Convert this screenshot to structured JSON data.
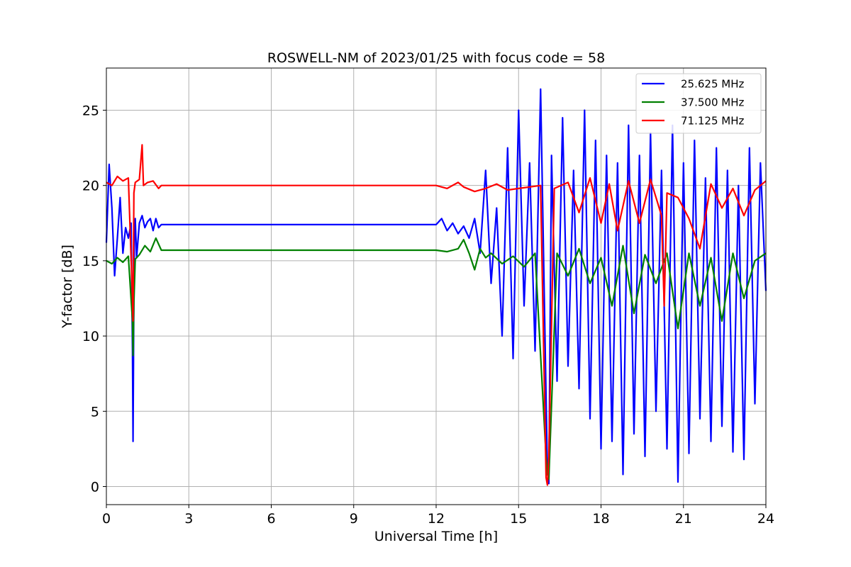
{
  "chart_data": {
    "type": "line",
    "title": "ROSWELL-NM of 2023/01/25 with focus code = 58",
    "xlabel": "Universal Time [h]",
    "ylabel": "Y-factor [dB]",
    "xlim": [
      0,
      24
    ],
    "ylim": [
      -1.2,
      27.8
    ],
    "xticks": [
      0,
      3,
      6,
      9,
      12,
      15,
      18,
      21,
      24
    ],
    "yticks": [
      0,
      5,
      10,
      15,
      20,
      25
    ],
    "grid": true,
    "legend_position": "top-right",
    "series": [
      {
        "name": "25.625 MHz",
        "color": "#0000ff",
        "x": [
          0,
          0.1,
          0.2,
          0.3,
          0.4,
          0.5,
          0.6,
          0.7,
          0.8,
          0.9,
          0.95,
          0.97,
          1.0,
          1.02,
          1.05,
          1.1,
          1.2,
          1.3,
          1.4,
          1.5,
          1.6,
          1.7,
          1.8,
          1.9,
          2.0,
          12.0,
          12.2,
          12.4,
          12.6,
          12.8,
          13.0,
          13.2,
          13.4,
          13.6,
          13.8,
          14.0,
          14.2,
          14.4,
          14.6,
          14.8,
          15.0,
          15.2,
          15.4,
          15.6,
          15.8,
          16.0,
          16.05,
          16.1,
          16.2,
          16.4,
          16.6,
          16.8,
          17.0,
          17.2,
          17.4,
          17.6,
          17.8,
          18.0,
          18.2,
          18.4,
          18.6,
          18.8,
          19.0,
          19.2,
          19.4,
          19.6,
          19.8,
          20.0,
          20.2,
          20.4,
          20.6,
          20.8,
          21.0,
          21.2,
          21.4,
          21.6,
          21.8,
          22.0,
          22.2,
          22.4,
          22.6,
          22.8,
          23.0,
          23.2,
          23.4,
          23.6,
          23.8,
          24.0
        ],
        "y": [
          16.2,
          21.4,
          18.5,
          14.0,
          16.5,
          19.2,
          15.5,
          17.2,
          16.5,
          17.5,
          9.0,
          3.0,
          13.0,
          16.5,
          17.8,
          15.2,
          17.5,
          18.0,
          17.2,
          17.6,
          17.8,
          17.0,
          17.8,
          17.2,
          17.4,
          17.4,
          17.8,
          17.0,
          17.5,
          16.8,
          17.3,
          16.5,
          17.8,
          15.5,
          21.0,
          13.5,
          18.5,
          10.0,
          22.5,
          8.5,
          25.0,
          12.0,
          21.5,
          9.0,
          26.4,
          6.0,
          1.0,
          0.2,
          22.0,
          7.0,
          24.5,
          8.0,
          21.0,
          6.5,
          25.0,
          4.5,
          23.0,
          2.5,
          22.0,
          3.0,
          21.5,
          0.8,
          24.0,
          3.5,
          22.0,
          2.0,
          23.5,
          5.0,
          21.0,
          2.5,
          24.0,
          0.3,
          21.5,
          2.2,
          23.0,
          4.5,
          20.5,
          3.0,
          22.5,
          4.0,
          21.0,
          2.3,
          20.0,
          1.8,
          22.5,
          5.5,
          21.5,
          13.0
        ]
      },
      {
        "name": "37.500 MHz",
        "color": "#008000",
        "x": [
          0,
          0.2,
          0.4,
          0.6,
          0.8,
          0.95,
          0.97,
          1.0,
          1.05,
          1.2,
          1.4,
          1.6,
          1.8,
          2.0,
          12.0,
          12.4,
          12.8,
          13.0,
          13.2,
          13.4,
          13.6,
          13.8,
          14.0,
          14.4,
          14.8,
          15.2,
          15.6,
          16.0,
          16.05,
          16.1,
          16.4,
          16.8,
          17.2,
          17.6,
          18.0,
          18.4,
          18.8,
          19.2,
          19.6,
          20.0,
          20.4,
          20.8,
          21.2,
          21.6,
          22.0,
          22.4,
          22.8,
          23.2,
          23.6,
          24.0
        ],
        "y": [
          15.0,
          14.8,
          15.2,
          14.9,
          15.3,
          11.0,
          8.7,
          12.2,
          15.1,
          15.4,
          16.0,
          15.6,
          16.5,
          15.7,
          15.7,
          15.6,
          15.8,
          16.4,
          15.5,
          14.4,
          15.8,
          15.2,
          15.5,
          14.8,
          15.3,
          14.6,
          15.5,
          2.0,
          0.8,
          0.5,
          15.5,
          14.0,
          15.8,
          13.5,
          15.2,
          12.0,
          16.0,
          11.5,
          15.4,
          13.5,
          15.5,
          10.5,
          15.5,
          12.0,
          15.2,
          11.0,
          15.5,
          12.5,
          15.0,
          15.5
        ]
      },
      {
        "name": "71.125 MHz",
        "color": "#ff0000",
        "x": [
          0,
          0.2,
          0.4,
          0.6,
          0.8,
          0.95,
          0.97,
          1.0,
          1.05,
          1.2,
          1.3,
          1.35,
          1.5,
          1.7,
          1.9,
          2.0,
          12.0,
          12.4,
          12.8,
          13.0,
          13.4,
          13.8,
          14.2,
          14.6,
          15.0,
          15.4,
          15.8,
          16.0,
          16.05,
          16.1,
          16.3,
          16.8,
          17.2,
          17.6,
          18.0,
          18.3,
          18.6,
          19.0,
          19.4,
          19.8,
          20.2,
          20.3,
          20.4,
          20.8,
          21.2,
          21.6,
          22.0,
          22.4,
          22.8,
          23.2,
          23.6,
          24.0
        ],
        "y": [
          20.2,
          20.0,
          20.6,
          20.3,
          20.5,
          12.5,
          11.0,
          19.5,
          20.2,
          20.4,
          22.7,
          20.0,
          20.2,
          20.3,
          19.8,
          20.0,
          20.0,
          19.8,
          20.2,
          19.9,
          19.6,
          19.8,
          20.1,
          19.7,
          19.8,
          19.9,
          20.0,
          0.6,
          0.1,
          2.0,
          19.8,
          20.2,
          18.2,
          20.5,
          17.5,
          20.1,
          17.0,
          20.3,
          17.5,
          20.4,
          18.0,
          12.0,
          19.5,
          19.2,
          17.8,
          15.8,
          20.1,
          18.5,
          19.8,
          18.0,
          19.7,
          20.3
        ]
      }
    ]
  }
}
